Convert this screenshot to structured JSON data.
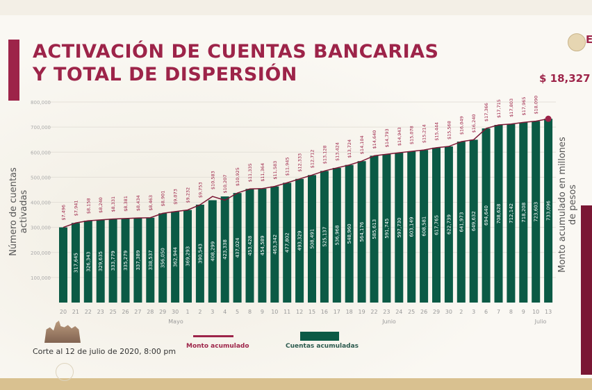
{
  "header": {
    "title_line1": "ACTIVACIÓN DE CUENTAS BANCARIAS",
    "title_line2": "Y TOTAL DE DISPERSIÓN",
    "total": "$ 18,327",
    "logo_letter": "E"
  },
  "footer": {
    "note": "Corte al 12 de julio de 2020, 8:00 pm"
  },
  "colors": {
    "maroon": "#9d2449",
    "green": "#0b5a45",
    "gold": "#d9c190"
  },
  "chart_data": {
    "type": "bar",
    "ylabel": "Número de cuentas activadas",
    "y2label": "Monto acumulado en millones de pesos",
    "ylim": [
      0,
      800000
    ],
    "yticks": [
      "100,000",
      "200,000",
      "300,000",
      "400,000",
      "500,000",
      "600,000",
      "700,000",
      "800,000"
    ],
    "grid": true,
    "legend_placement": "bottom",
    "categories": [
      "20",
      "21",
      "22",
      "23",
      "25",
      "26",
      "27",
      "28",
      "29",
      "30",
      "1",
      "2",
      "3",
      "4",
      "5",
      "8",
      "9",
      "10",
      "11",
      "12",
      "15",
      "16",
      "17",
      "18",
      "19",
      "22",
      "23",
      "24",
      "25",
      "26",
      "29",
      "30",
      "2",
      "3",
      "6",
      "7",
      "8",
      "9",
      "10",
      "13"
    ],
    "month_labels": [
      "Mayo",
      "Junio",
      "Julio"
    ],
    "series": [
      {
        "name": "Cuentas acumuladas",
        "type": "bar",
        "values": [
          300000,
          317645,
          326343,
          329635,
          333779,
          335279,
          337389,
          338537,
          356050,
          362944,
          369293,
          390543,
          408299,
          423338,
          437024,
          453428,
          454589,
          463342,
          477802,
          493329,
          508491,
          525137,
          536968,
          548960,
          564176,
          585613,
          591745,
          597730,
          603149,
          608581,
          617765,
          622739,
          641973,
          649632,
          694640,
          708628,
          712142,
          718208,
          723603,
          733096
        ],
        "labels": [
          "",
          "317,645",
          "326,343",
          "329,635",
          "333,779",
          "335,279",
          "337,389",
          "338,537",
          "356,050",
          "362,944",
          "369,293",
          "390,543",
          "408,299",
          "423,338",
          "437,024",
          "453,428",
          "454,589",
          "463,342",
          "477,802",
          "493,329",
          "508,491",
          "525,137",
          "536,968",
          "548,960",
          "564,176",
          "585,613",
          "591,745",
          "597,730",
          "603,149",
          "608,581",
          "617,765",
          "622,739",
          "641,973",
          "649,632",
          "694,640",
          "708,628",
          "712,142",
          "718,208",
          "723,603",
          "733,096"
        ]
      },
      {
        "name": "Monto acumulado",
        "type": "line",
        "values": [
          7496,
          7941,
          8158,
          8240,
          8331,
          8381,
          8434,
          8463,
          8901,
          9073,
          9232,
          9753,
          10583,
          10207,
          10925,
          11335,
          11364,
          11583,
          11945,
          12333,
          12712,
          13128,
          13424,
          13724,
          14104,
          14640,
          14793,
          14943,
          15078,
          15214,
          15444,
          15568,
          16049,
          16240,
          17366,
          17715,
          17803,
          17965,
          18090,
          18327
        ],
        "labels": [
          "$7,496",
          "$7,941",
          "$8,158",
          "$8,240",
          "$8,331",
          "$8,381",
          "$8,434",
          "$8,463",
          "$8,901",
          "$9,073",
          "$9,232",
          "$9,753",
          "$10,583",
          "$10,207",
          "$10,925",
          "$11,335",
          "$11,364",
          "$11,583",
          "$11,945",
          "$12,333",
          "$12,712",
          "$13,128",
          "$13,424",
          "$13,724",
          "$14,104",
          "$14,640",
          "$14,793",
          "$14,943",
          "$15,078",
          "$15,214",
          "$15,444",
          "$15,568",
          "$16,049",
          "$16,240",
          "$17,366",
          "$17,715",
          "$17,803",
          "$17,965",
          "$18,090",
          ""
        ]
      }
    ]
  }
}
